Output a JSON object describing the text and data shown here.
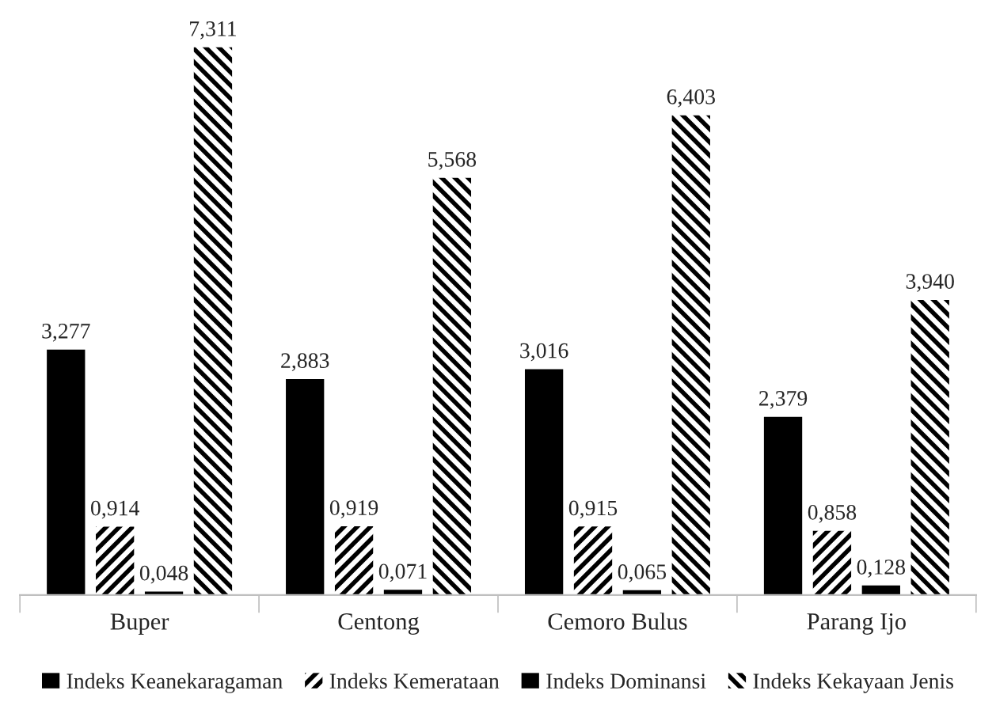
{
  "chart_data": {
    "type": "bar",
    "categories": [
      "Buper",
      "Centong",
      "Cemoro Bulus",
      "Parang Ijo"
    ],
    "series": [
      {
        "name": "Indeks Keanekaragaman",
        "color": "#000000",
        "values": [
          3.277,
          2.883,
          3.016,
          2.379
        ],
        "value_labels": [
          "3,277",
          "2,883",
          "3,016",
          "2,379"
        ]
      },
      {
        "name": "Indeks Kemerataan",
        "color": "#000000",
        "values": [
          0.914,
          0.919,
          0.915,
          0.858
        ],
        "value_labels": [
          "0,914",
          "0,919",
          "0,915",
          "0,858"
        ]
      },
      {
        "name": "Indeks Dominansi",
        "color": "#000000",
        "values": [
          0.048,
          0.071,
          0.065,
          0.128
        ],
        "value_labels": [
          "0,048",
          "0,071",
          "0,065",
          "0,128"
        ]
      },
      {
        "name": "Indeks Kekayaan Jenis",
        "color": "#000000",
        "values": [
          7.311,
          5.568,
          6.403,
          3.94
        ],
        "value_labels": [
          "7,311",
          "5,568",
          "6,403",
          "3,940"
        ]
      }
    ],
    "legend": "bottom",
    "grid": false
  }
}
